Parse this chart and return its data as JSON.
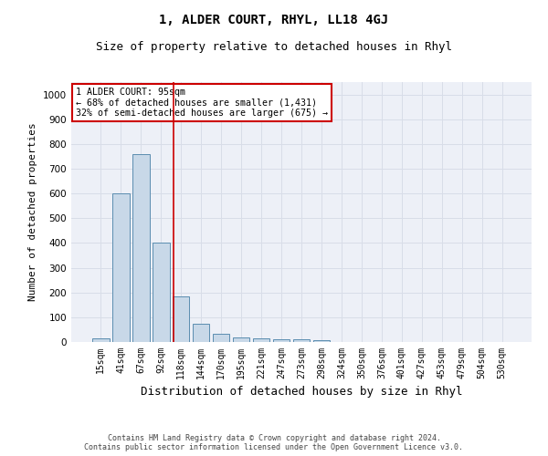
{
  "title": "1, ALDER COURT, RHYL, LL18 4GJ",
  "subtitle": "Size of property relative to detached houses in Rhyl",
  "xlabel": "Distribution of detached houses by size in Rhyl",
  "ylabel": "Number of detached properties",
  "footer": "Contains HM Land Registry data © Crown copyright and database right 2024.\nContains public sector information licensed under the Open Government Licence v3.0.",
  "bar_labels": [
    "15sqm",
    "41sqm",
    "67sqm",
    "92sqm",
    "118sqm",
    "144sqm",
    "170sqm",
    "195sqm",
    "221sqm",
    "247sqm",
    "273sqm",
    "298sqm",
    "324sqm",
    "350sqm",
    "376sqm",
    "401sqm",
    "427sqm",
    "453sqm",
    "479sqm",
    "504sqm",
    "530sqm"
  ],
  "bar_values": [
    15,
    600,
    760,
    400,
    185,
    75,
    35,
    18,
    13,
    10,
    10,
    6,
    0,
    0,
    0,
    0,
    0,
    0,
    0,
    0,
    0
  ],
  "bar_color": "#c8d8e8",
  "bar_edge_color": "#5b8db0",
  "annotation_box_text": "1 ALDER COURT: 95sqm\n← 68% of detached houses are smaller (1,431)\n32% of semi-detached houses are larger (675) →",
  "annotation_box_color": "#ffffff",
  "annotation_box_edge_color": "#cc0000",
  "vline_x": 3.62,
  "vline_color": "#cc0000",
  "ylim": [
    0,
    1050
  ],
  "yticks": [
    0,
    100,
    200,
    300,
    400,
    500,
    600,
    700,
    800,
    900,
    1000
  ],
  "grid_color": "#d8dde8",
  "background_color": "#edf0f7",
  "title_fontsize": 10,
  "subtitle_fontsize": 9,
  "tick_fontsize": 7,
  "ylabel_fontsize": 8,
  "xlabel_fontsize": 9,
  "footer_fontsize": 6
}
